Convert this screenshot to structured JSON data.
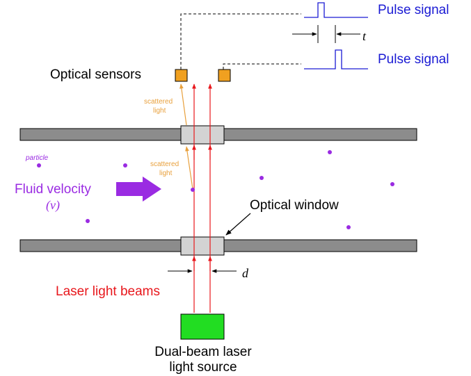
{
  "colors": {
    "pipe": "#8c8c8c",
    "window": "#d3d3d3",
    "sensor": "#f0a020",
    "laser_source": "#22dd22",
    "beam": "#e8171c",
    "scatter": "#e8a03c",
    "particle": "#9a2be2",
    "arrow_fill": "#9a2be2",
    "signal": "#1a1ad4",
    "text": "#000000"
  },
  "labels": {
    "pulse_signal_top": "Pulse signal",
    "pulse_signal_bottom": "Pulse signal",
    "time_symbol": "t",
    "optical_sensors": "Optical sensors",
    "scattered_light_upper_1": "scattered",
    "scattered_light_upper_2": "light",
    "scattered_light_lower_1": "scattered",
    "scattered_light_lower_2": "light",
    "particle": "particle",
    "fluid_velocity": "Fluid velocity",
    "velocity_symbol": "(v)",
    "optical_window": "Optical window",
    "distance_symbol": "d",
    "laser_beams": "Laser light beams",
    "source_line1": "Dual-beam laser",
    "source_line2": "light source"
  }
}
